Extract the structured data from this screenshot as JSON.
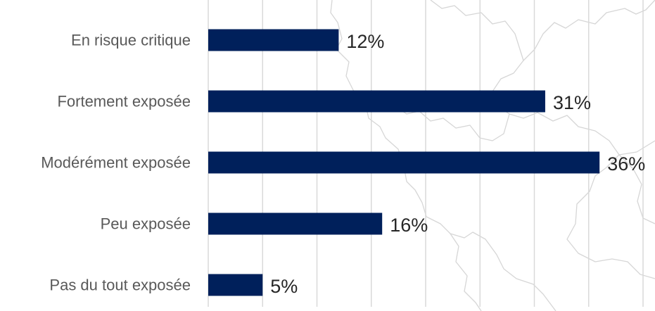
{
  "chart_data": {
    "type": "bar",
    "orientation": "horizontal",
    "categories": [
      "En risque critique",
      "Fortement exposée",
      "Modérément exposée",
      "Peu exposée",
      "Pas du tout exposée"
    ],
    "values": [
      12,
      31,
      36,
      16,
      5
    ],
    "value_labels": [
      "12%",
      "31%",
      "36%",
      "16%",
      "5%"
    ],
    "unit": "%",
    "xlim": [
      0,
      40
    ],
    "grid": true,
    "legend": "none",
    "colors": {
      "bar": "#00205b",
      "grid": "#d9d9d9",
      "category_text": "#595959",
      "value_text": "#262626",
      "background_map": "#d6d6d6"
    }
  }
}
